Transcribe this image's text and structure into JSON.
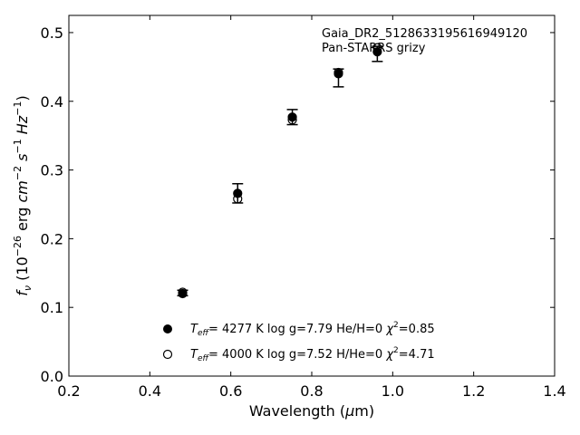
{
  "chart_data": {
    "type": "scatter",
    "title": "",
    "annotation_lines": [
      "Gaia_DR2_5128633195616949120",
      "Pan-STARRS grizy"
    ],
    "xlabel": "Wavelength (μm)",
    "ylabel": "f_ν (10^-26 erg cm^-2 s^-1 Hz^-1)",
    "xlim": [
      0.2,
      1.4
    ],
    "ylim": [
      0.0,
      0.525
    ],
    "xticks": [
      "0.2",
      "0.4",
      "0.6",
      "0.8",
      "1.0",
      "1.2",
      "1.4"
    ],
    "yticks": [
      "0.0",
      "0.1",
      "0.2",
      "0.3",
      "0.4",
      "0.5"
    ],
    "grid": false,
    "legend_position": "bottom-left",
    "observed": {
      "x": [
        0.481,
        0.617,
        0.752,
        0.866,
        0.962
      ],
      "y": [
        0.121,
        0.266,
        0.377,
        0.434,
        0.469
      ],
      "yerr": [
        0.004,
        0.014,
        0.011,
        0.013,
        0.011
      ]
    },
    "series": [
      {
        "name": "T_eff= 4277 K  log g=7.79  He/H=0  χ²=0.85",
        "marker": "filled-circle",
        "x": [
          0.481,
          0.617,
          0.752,
          0.866,
          0.962
        ],
        "y": [
          0.12,
          0.266,
          0.377,
          0.44,
          0.472
        ]
      },
      {
        "name": "T_eff= 4000 K  log g=7.52  H/He=0  χ²=4.71",
        "marker": "open-circle",
        "x": [
          0.481,
          0.617,
          0.752,
          0.866,
          0.962
        ],
        "y": [
          0.122,
          0.258,
          0.373,
          0.442,
          0.478
        ]
      }
    ],
    "legend": {
      "model1": {
        "teff": "4277 K",
        "logg": "log g=7.79",
        "comp": "He/H=0",
        "chi": "=0.85"
      },
      "model2": {
        "teff": "4000 K",
        "logg": "log g=7.52",
        "comp": "H/He=0",
        "chi": "=4.71"
      }
    }
  }
}
